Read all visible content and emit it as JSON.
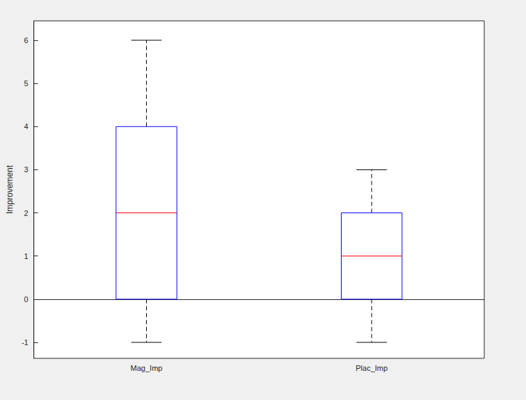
{
  "chart_data": {
    "type": "boxplot",
    "categories": [
      "Mag_Imp",
      "Plac_Imp"
    ],
    "boxes": [
      [
        -1,
        0,
        2,
        4,
        6
      ],
      [
        -1,
        0,
        1,
        2,
        3
      ]
    ],
    "y_label": "Improvement",
    "color": "#0000ff",
    "ylim": [
      -1.37,
      6.45
    ],
    "yticks": [
      -1,
      0,
      1,
      2,
      3,
      4,
      5,
      6
    ],
    "grid": false
  }
}
